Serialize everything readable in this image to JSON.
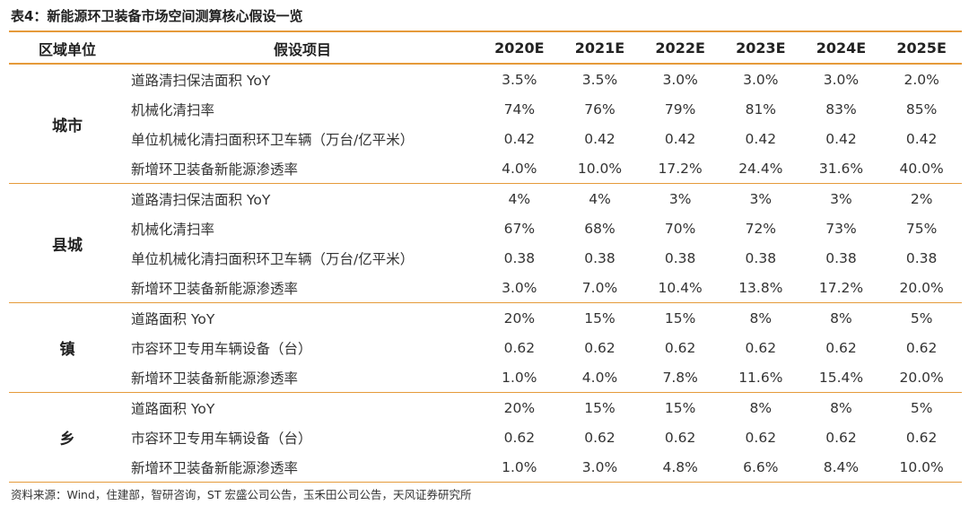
{
  "title": "表4：新能源环卫装备市场空间测算核心假设一览",
  "headers": {
    "region": "区域单位",
    "item": "假设项目",
    "years": [
      "2020E",
      "2021E",
      "2022E",
      "2023E",
      "2024E",
      "2025E"
    ]
  },
  "groups": [
    {
      "region": "城市",
      "rows": [
        {
          "item": "道路清扫保洁面积 YoY",
          "values": [
            "3.5%",
            "3.5%",
            "3.0%",
            "3.0%",
            "3.0%",
            "2.0%"
          ]
        },
        {
          "item": "机械化清扫率",
          "values": [
            "74%",
            "76%",
            "79%",
            "81%",
            "83%",
            "85%"
          ]
        },
        {
          "item": "单位机械化清扫面积环卫车辆（万台/亿平米）",
          "values": [
            "0.42",
            "0.42",
            "0.42",
            "0.42",
            "0.42",
            "0.42"
          ]
        },
        {
          "item": "新增环卫装备新能源渗透率",
          "values": [
            "4.0%",
            "10.0%",
            "17.2%",
            "24.4%",
            "31.6%",
            "40.0%"
          ]
        }
      ]
    },
    {
      "region": "县城",
      "rows": [
        {
          "item": "道路清扫保洁面积 YoY",
          "values": [
            "4%",
            "4%",
            "3%",
            "3%",
            "3%",
            "2%"
          ]
        },
        {
          "item": "机械化清扫率",
          "values": [
            "67%",
            "68%",
            "70%",
            "72%",
            "73%",
            "75%"
          ]
        },
        {
          "item": "单位机械化清扫面积环卫车辆（万台/亿平米）",
          "values": [
            "0.38",
            "0.38",
            "0.38",
            "0.38",
            "0.38",
            "0.38"
          ]
        },
        {
          "item": "新增环卫装备新能源渗透率",
          "values": [
            "3.0%",
            "7.0%",
            "10.4%",
            "13.8%",
            "17.2%",
            "20.0%"
          ]
        }
      ]
    },
    {
      "region": "镇",
      "rows": [
        {
          "item": "道路面积 YoY",
          "values": [
            "20%",
            "15%",
            "15%",
            "8%",
            "8%",
            "5%"
          ]
        },
        {
          "item": "市容环卫专用车辆设备（台）",
          "values": [
            "0.62",
            "0.62",
            "0.62",
            "0.62",
            "0.62",
            "0.62"
          ]
        },
        {
          "item": "新增环卫装备新能源渗透率",
          "values": [
            "1.0%",
            "4.0%",
            "7.8%",
            "11.6%",
            "15.4%",
            "20.0%"
          ]
        }
      ]
    },
    {
      "region": "乡",
      "rows": [
        {
          "item": "道路面积 YoY",
          "values": [
            "20%",
            "15%",
            "15%",
            "8%",
            "8%",
            "5%"
          ]
        },
        {
          "item": "市容环卫专用车辆设备（台）",
          "values": [
            "0.62",
            "0.62",
            "0.62",
            "0.62",
            "0.62",
            "0.62"
          ]
        },
        {
          "item": "新增环卫装备新能源渗透率",
          "values": [
            "1.0%",
            "3.0%",
            "4.8%",
            "6.6%",
            "8.4%",
            "10.0%"
          ]
        }
      ]
    }
  ],
  "source": "资料来源：Wind，住建部，智研咨询，ST 宏盛公司公告，玉禾田公司公告，天风证券研究所",
  "colors": {
    "accent_line": "#e59a3a"
  }
}
